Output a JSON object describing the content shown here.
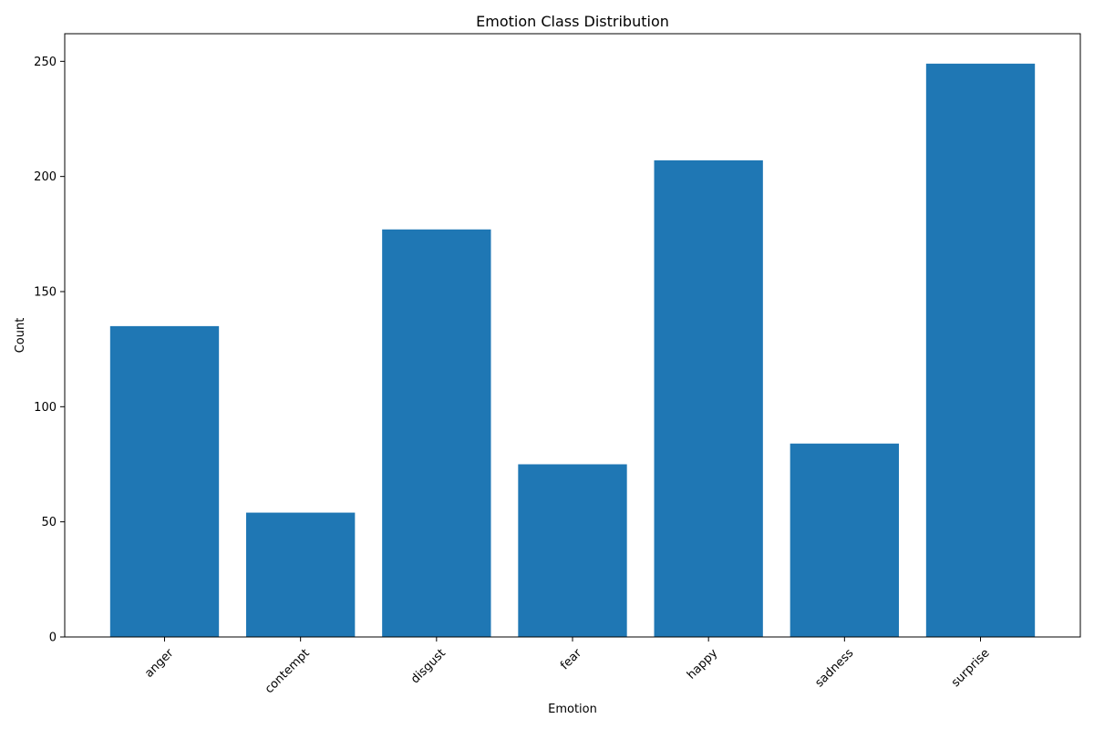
{
  "chart_data": {
    "type": "bar",
    "title": "Emotion Class Distribution",
    "xlabel": "Emotion",
    "ylabel": "Count",
    "categories": [
      "anger",
      "contempt",
      "disgust",
      "fear",
      "happy",
      "sadness",
      "surprise"
    ],
    "values": [
      135,
      54,
      177,
      75,
      207,
      84,
      249
    ],
    "ylim": [
      0,
      262
    ],
    "yticks": [
      0,
      50,
      100,
      150,
      200,
      250
    ],
    "grid": false,
    "legend": "none",
    "x_tick_rotation_deg": 45,
    "bar_color": "#1f77b4"
  }
}
